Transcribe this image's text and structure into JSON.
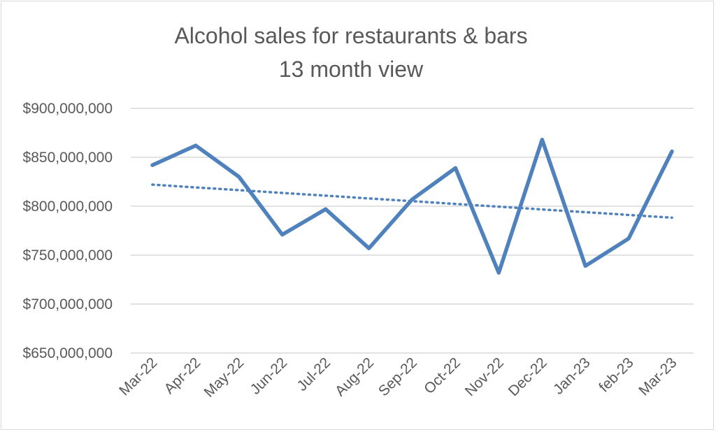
{
  "chart_data": {
    "type": "line",
    "title_lines": [
      "Alcohol sales for restaurants & bars",
      "13 month view"
    ],
    "categories": [
      "Mar-22",
      "Apr-22",
      "May-22",
      "Jun-22",
      "Jul-22",
      "Aug-22",
      "Sep-22",
      "Oct-22",
      "Nov-22",
      "Dec-22",
      "Jan-23",
      "feb-23",
      "Mar-23"
    ],
    "series": [
      {
        "values": [
          842000000,
          862000000,
          830000000,
          771000000,
          797000000,
          757000000,
          807000000,
          839000000,
          732000000,
          868000000,
          739000000,
          767000000,
          856000000
        ],
        "color": "#4f81bd"
      }
    ],
    "trendline": {
      "type": "linear",
      "style": "dotted",
      "color": "#4f81bd"
    },
    "ylim": [
      650000000,
      900000000
    ],
    "ytick_step": 50000000,
    "ytick_labels": [
      "$650,000,000",
      "$700,000,000",
      "$750,000,000",
      "$800,000,000",
      "$850,000,000",
      "$900,000,000"
    ],
    "grid": true,
    "legend": "none"
  }
}
